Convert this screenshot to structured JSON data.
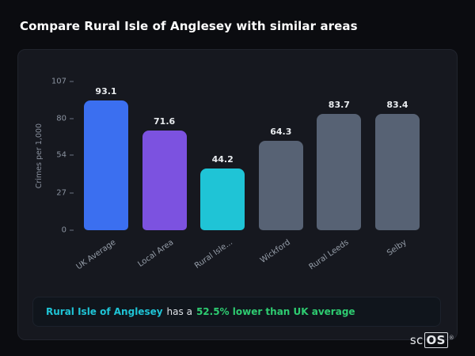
{
  "title": "Compare Rural Isle of Anglesey with similar areas",
  "chart_data": {
    "type": "bar",
    "categories": [
      "UK Average",
      "Local Area",
      "Rural Isle...",
      "Wickford",
      "Rural Leeds",
      "Selby"
    ],
    "values": [
      93.1,
      71.6,
      44.2,
      64.3,
      83.7,
      83.4
    ],
    "bar_colors": [
      "#3b6ff0",
      "#7c52e0",
      "#1fc4d6",
      "#576274",
      "#576274",
      "#576274"
    ],
    "title": "",
    "xlabel": "",
    "ylabel": "Crimes per 1,000",
    "ylim": [
      0,
      107
    ],
    "yticks": [
      0,
      27,
      54,
      80,
      107
    ],
    "grid": false,
    "legend": false
  },
  "callout": {
    "area": "Rural Isle of Anglesey",
    "middle": "has a",
    "stat": "52.5% lower than UK average"
  },
  "colors": {
    "teal_highlight": "#1fc4d6",
    "green_highlight": "#2ecc71",
    "bar_blue": "#3b6ff0",
    "bar_purple": "#7c52e0",
    "bar_teal": "#1fc4d6",
    "bar_slate": "#576274"
  },
  "logo": {
    "prefix": "sc",
    "boxed": "OS",
    "reg": "®"
  }
}
